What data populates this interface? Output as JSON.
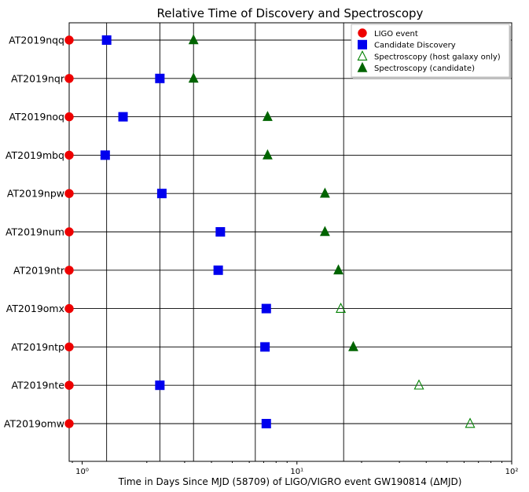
{
  "chart_data": {
    "type": "scatter",
    "title": "Relative Time of Discovery and Spectroscopy",
    "xlabel": "Time in Days Since MJD (58709) of LIGO/VIGRO event GW190814 (ΔMJD)",
    "ylabel": "",
    "xscale": "log",
    "xlim": [
      0.87,
      100
    ],
    "x_ticks": [
      {
        "value": 1,
        "label": "10⁰"
      },
      {
        "value": 10,
        "label": "10¹"
      },
      {
        "value": 100,
        "label": "10²"
      }
    ],
    "vertical_reference_lines": [
      1.3,
      2.3,
      3.3,
      6.4,
      16.5
    ],
    "grid": "horizontal at each event plus vertical reference lines",
    "legend_position": "top-right",
    "categories": [
      "AT2019nqq",
      "AT2019nqr",
      "AT2019noq",
      "AT2019mbq",
      "AT2019npw",
      "AT2019num",
      "AT2019ntr",
      "AT2019omx",
      "AT2019ntp",
      "AT2019nte",
      "AT2019omw"
    ],
    "series": [
      {
        "name": "LIGO event",
        "marker": "circle",
        "color": "#ee0000",
        "filled": true,
        "x": [
          0.87,
          0.87,
          0.87,
          0.87,
          0.87,
          0.87,
          0.87,
          0.87,
          0.87,
          0.87,
          0.87
        ]
      },
      {
        "name": "Candidate Discovery",
        "marker": "square",
        "color": "#0000ee",
        "filled": true,
        "x": [
          1.3,
          2.3,
          1.55,
          1.28,
          2.35,
          4.4,
          4.3,
          7.2,
          7.1,
          2.3,
          7.2
        ]
      },
      {
        "name": "Spectroscopy (host galaxy only)",
        "marker": "triangle",
        "color": "#008000",
        "filled": false,
        "x": [
          null,
          null,
          null,
          null,
          null,
          null,
          null,
          16.0,
          null,
          37.0,
          64.0
        ]
      },
      {
        "name": "Spectroscopy (candidate)",
        "marker": "triangle",
        "color": "#006400",
        "filled": true,
        "x": [
          3.3,
          3.3,
          7.3,
          7.3,
          13.5,
          13.5,
          15.6,
          null,
          18.3,
          null,
          null
        ]
      }
    ]
  }
}
